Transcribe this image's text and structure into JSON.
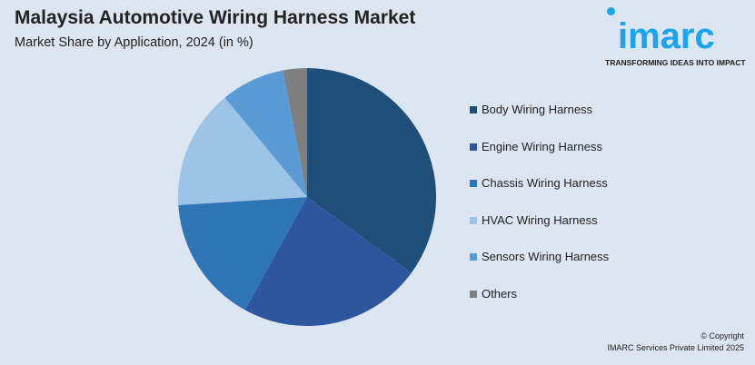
{
  "header": {
    "title": "Malaysia Automotive Wiring Harness Market",
    "subtitle": "Market Share by Application, 2024 (in %)"
  },
  "logo": {
    "text": "imarc",
    "tagline": "TRANSFORMING IDEAS INTO IMPACT",
    "color": "#1aa3ee"
  },
  "footer": {
    "copyright": "© Copyright",
    "company": "IMARC Services Private Limited 2025"
  },
  "chart_data": {
    "type": "pie",
    "title": "Malaysia Automotive Wiring Harness Market",
    "subtitle": "Market Share by Application, 2024 (in %)",
    "legend_position": "right",
    "start_angle": "top, clockwise",
    "series": [
      {
        "name": "Body Wiring Harness",
        "value": 35,
        "color": "#1f4e79"
      },
      {
        "name": "Engine Wiring Harness",
        "value": 23,
        "color": "#2e569e"
      },
      {
        "name": "Chassis Wiring Harness",
        "value": 16,
        "color": "#2e75b6"
      },
      {
        "name": "HVAC Wiring Harness",
        "value": 15,
        "color": "#9dc3e6"
      },
      {
        "name": "Sensors Wiring Harness",
        "value": 8,
        "color": "#5b9bd5"
      },
      {
        "name": "Others",
        "value": 3,
        "color": "#7f7f7f"
      }
    ]
  }
}
